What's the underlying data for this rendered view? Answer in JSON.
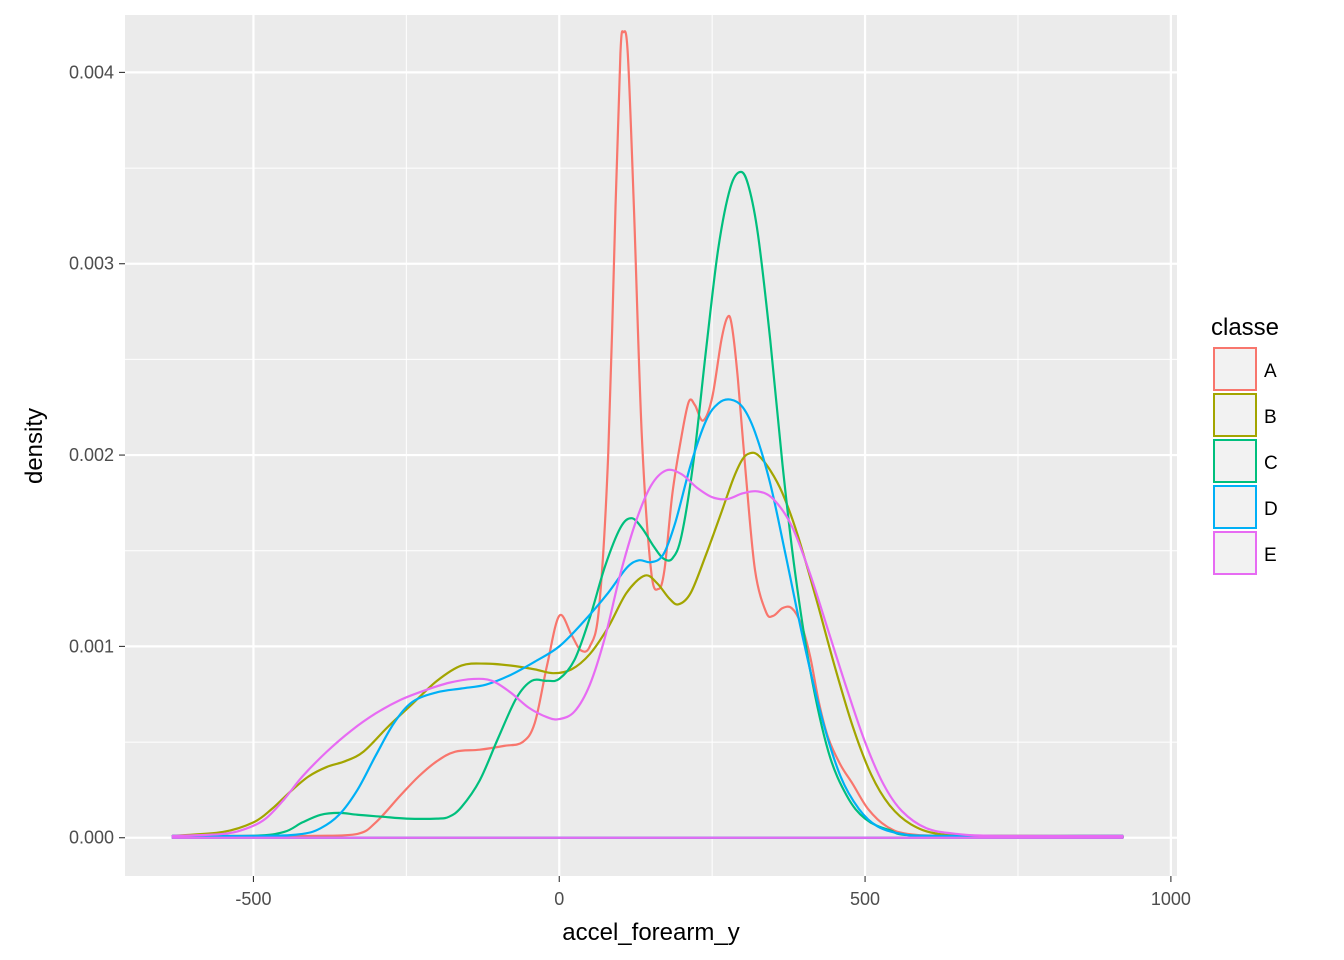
{
  "chart_data": {
    "type": "line",
    "title": "",
    "xlabel": "accel_forearm_y",
    "ylabel": "density",
    "xlim": [
      -710,
      1010
    ],
    "ylim": [
      -0.0002,
      0.0043
    ],
    "xticks": [
      -500,
      0,
      500,
      1000
    ],
    "xtick_labels": [
      "-500",
      "0",
      "500",
      "1000"
    ],
    "yticks": [
      0,
      0.001,
      0.002,
      0.003,
      0.004
    ],
    "ytick_labels": [
      "0.000",
      "0.001",
      "0.002",
      "0.003",
      "0.004"
    ],
    "grid": true,
    "legend": {
      "title": "classe",
      "position": "right"
    },
    "series": [
      {
        "name": "A",
        "color": "#F8766D",
        "points": [
          [
            -632,
            1e-05
          ],
          [
            -500,
            1e-05
          ],
          [
            -400,
            1e-05
          ],
          [
            -330,
            2e-05
          ],
          [
            -300,
            8e-05
          ],
          [
            -260,
            0.00022
          ],
          [
            -230,
            0.00032
          ],
          [
            -200,
            0.0004
          ],
          [
            -170,
            0.00045
          ],
          [
            -130,
            0.00046
          ],
          [
            -90,
            0.00048
          ],
          [
            -60,
            0.0005
          ],
          [
            -40,
            0.0006
          ],
          [
            -20,
            0.0009
          ],
          [
            0,
            0.00116
          ],
          [
            20,
            0.00106
          ],
          [
            35,
            0.00098
          ],
          [
            50,
            0.001
          ],
          [
            65,
            0.0012
          ],
          [
            80,
            0.002
          ],
          [
            92,
            0.0033
          ],
          [
            100,
            0.0041
          ],
          [
            105,
            0.00421
          ],
          [
            112,
            0.0041
          ],
          [
            122,
            0.0033
          ],
          [
            135,
            0.0021
          ],
          [
            150,
            0.0014
          ],
          [
            162,
            0.0013
          ],
          [
            172,
            0.0014
          ],
          [
            185,
            0.0018
          ],
          [
            200,
            0.0021
          ],
          [
            212,
            0.00228
          ],
          [
            222,
            0.00226
          ],
          [
            235,
            0.00218
          ],
          [
            250,
            0.0023
          ],
          [
            265,
            0.0026
          ],
          [
            275,
            0.00272
          ],
          [
            282,
            0.00268
          ],
          [
            292,
            0.0024
          ],
          [
            305,
            0.0019
          ],
          [
            320,
            0.0014
          ],
          [
            338,
            0.00118
          ],
          [
            350,
            0.00116
          ],
          [
            365,
            0.0012
          ],
          [
            380,
            0.0012
          ],
          [
            395,
            0.00112
          ],
          [
            410,
            0.00095
          ],
          [
            425,
            0.0007
          ],
          [
            440,
            0.00052
          ],
          [
            460,
            0.00038
          ],
          [
            480,
            0.00028
          ],
          [
            505,
            0.00015
          ],
          [
            535,
            6e-05
          ],
          [
            570,
            2e-05
          ],
          [
            650,
            1e-05
          ],
          [
            921,
            1e-05
          ]
        ]
      },
      {
        "name": "B",
        "color": "#A3A500",
        "points": [
          [
            -632,
            1e-05
          ],
          [
            -550,
            3e-05
          ],
          [
            -500,
            8e-05
          ],
          [
            -470,
            0.00015
          ],
          [
            -440,
            0.00024
          ],
          [
            -410,
            0.00032
          ],
          [
            -380,
            0.00037
          ],
          [
            -350,
            0.0004
          ],
          [
            -320,
            0.00045
          ],
          [
            -280,
            0.00058
          ],
          [
            -240,
            0.0007
          ],
          [
            -200,
            0.00082
          ],
          [
            -160,
            0.0009
          ],
          [
            -120,
            0.00091
          ],
          [
            -80,
            0.0009
          ],
          [
            -40,
            0.00088
          ],
          [
            -10,
            0.00086
          ],
          [
            20,
            0.00088
          ],
          [
            50,
            0.00096
          ],
          [
            80,
            0.0011
          ],
          [
            110,
            0.00128
          ],
          [
            140,
            0.00137
          ],
          [
            160,
            0.00133
          ],
          [
            180,
            0.00125
          ],
          [
            195,
            0.00122
          ],
          [
            215,
            0.00128
          ],
          [
            240,
            0.00148
          ],
          [
            265,
            0.0017
          ],
          [
            285,
            0.00188
          ],
          [
            300,
            0.00198
          ],
          [
            312,
            0.00201
          ],
          [
            325,
            0.002
          ],
          [
            345,
            0.00192
          ],
          [
            365,
            0.0018
          ],
          [
            390,
            0.00158
          ],
          [
            420,
            0.00125
          ],
          [
            450,
            0.0009
          ],
          [
            480,
            0.00058
          ],
          [
            510,
            0.00033
          ],
          [
            540,
            0.00017
          ],
          [
            575,
            7e-05
          ],
          [
            620,
            2e-05
          ],
          [
            700,
            1e-05
          ],
          [
            921,
            1e-05
          ]
        ]
      },
      {
        "name": "C",
        "color": "#00BF7D",
        "points": [
          [
            -632,
            1e-05
          ],
          [
            -500,
            1e-05
          ],
          [
            -450,
            3e-05
          ],
          [
            -420,
            8e-05
          ],
          [
            -390,
            0.00012
          ],
          [
            -360,
            0.00013
          ],
          [
            -330,
            0.00012
          ],
          [
            -290,
            0.00011
          ],
          [
            -250,
            0.0001
          ],
          [
            -200,
            0.0001
          ],
          [
            -180,
            0.00011
          ],
          [
            -160,
            0.00016
          ],
          [
            -130,
            0.0003
          ],
          [
            -100,
            0.00052
          ],
          [
            -70,
            0.00073
          ],
          [
            -45,
            0.00082
          ],
          [
            -20,
            0.00082
          ],
          [
            0,
            0.00083
          ],
          [
            25,
            0.00093
          ],
          [
            50,
            0.00115
          ],
          [
            75,
            0.00142
          ],
          [
            100,
            0.00162
          ],
          [
            118,
            0.00167
          ],
          [
            135,
            0.00162
          ],
          [
            155,
            0.00152
          ],
          [
            170,
            0.00146
          ],
          [
            185,
            0.00146
          ],
          [
            200,
            0.00158
          ],
          [
            220,
            0.00198
          ],
          [
            240,
            0.00255
          ],
          [
            260,
            0.00308
          ],
          [
            280,
            0.0034
          ],
          [
            297,
            0.00348
          ],
          [
            310,
            0.0034
          ],
          [
            325,
            0.00315
          ],
          [
            345,
            0.0026
          ],
          [
            365,
            0.00195
          ],
          [
            385,
            0.0014
          ],
          [
            410,
            0.00088
          ],
          [
            440,
            0.00045
          ],
          [
            470,
            0.00022
          ],
          [
            500,
            0.0001
          ],
          [
            540,
            4e-05
          ],
          [
            600,
            1e-05
          ],
          [
            921,
            1e-05
          ]
        ]
      },
      {
        "name": "D",
        "color": "#00B0F6",
        "points": [
          [
            -632,
            1e-05
          ],
          [
            -480,
            1e-05
          ],
          [
            -420,
            2e-05
          ],
          [
            -390,
            5e-05
          ],
          [
            -360,
            0.00012
          ],
          [
            -330,
            0.00025
          ],
          [
            -300,
            0.00043
          ],
          [
            -270,
            0.0006
          ],
          [
            -240,
            0.00071
          ],
          [
            -200,
            0.00076
          ],
          [
            -160,
            0.00078
          ],
          [
            -120,
            0.0008
          ],
          [
            -80,
            0.00085
          ],
          [
            -40,
            0.00092
          ],
          [
            0,
            0.001
          ],
          [
            40,
            0.00113
          ],
          [
            80,
            0.00128
          ],
          [
            110,
            0.00141
          ],
          [
            130,
            0.00145
          ],
          [
            150,
            0.00144
          ],
          [
            170,
            0.00148
          ],
          [
            190,
            0.00165
          ],
          [
            215,
            0.00195
          ],
          [
            240,
            0.00218
          ],
          [
            260,
            0.00227
          ],
          [
            280,
            0.00229
          ],
          [
            300,
            0.00225
          ],
          [
            320,
            0.00212
          ],
          [
            345,
            0.00185
          ],
          [
            370,
            0.00148
          ],
          [
            400,
            0.00102
          ],
          [
            430,
            0.00062
          ],
          [
            460,
            0.00032
          ],
          [
            490,
            0.00015
          ],
          [
            520,
            6e-05
          ],
          [
            560,
            2e-05
          ],
          [
            620,
            1e-05
          ],
          [
            921,
            1e-05
          ]
        ]
      },
      {
        "name": "E",
        "color": "#E76BF3",
        "points": [
          [
            -632,
            1e-05
          ],
          [
            -550,
            2e-05
          ],
          [
            -510,
            5e-05
          ],
          [
            -480,
            0.0001
          ],
          [
            -450,
            0.0002
          ],
          [
            -420,
            0.00032
          ],
          [
            -380,
            0.00045
          ],
          [
            -340,
            0.00056
          ],
          [
            -300,
            0.00065
          ],
          [
            -260,
            0.00072
          ],
          [
            -220,
            0.00077
          ],
          [
            -180,
            0.00081
          ],
          [
            -140,
            0.00083
          ],
          [
            -110,
            0.00082
          ],
          [
            -80,
            0.00076
          ],
          [
            -50,
            0.00068
          ],
          [
            -20,
            0.00063
          ],
          [
            0,
            0.00062
          ],
          [
            25,
            0.00066
          ],
          [
            50,
            0.0008
          ],
          [
            75,
            0.00105
          ],
          [
            100,
            0.00138
          ],
          [
            125,
            0.00165
          ],
          [
            150,
            0.00184
          ],
          [
            175,
            0.00192
          ],
          [
            200,
            0.0019
          ],
          [
            225,
            0.00183
          ],
          [
            250,
            0.00178
          ],
          [
            275,
            0.00177
          ],
          [
            300,
            0.0018
          ],
          [
            325,
            0.00181
          ],
          [
            350,
            0.00177
          ],
          [
            380,
            0.00163
          ],
          [
            410,
            0.00138
          ],
          [
            440,
            0.00108
          ],
          [
            470,
            0.00078
          ],
          [
            500,
            0.0005
          ],
          [
            530,
            0.00028
          ],
          [
            560,
            0.00014
          ],
          [
            600,
            5e-05
          ],
          [
            650,
            2e-05
          ],
          [
            720,
            1e-05
          ],
          [
            921,
            1e-05
          ]
        ]
      }
    ]
  }
}
